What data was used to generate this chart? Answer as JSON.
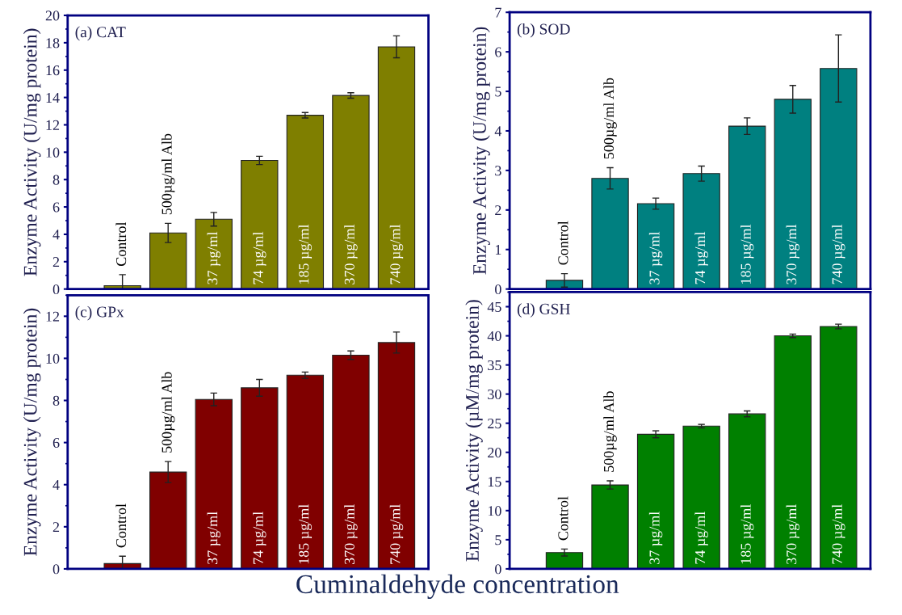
{
  "chart_data": [
    {
      "type": "bar",
      "title": "(a) CAT",
      "ylabel": "Enzyme Activity (U/mg protein)",
      "categories": [
        "Control",
        "500µg/ml Alb",
        "37 µg/ml",
        "74 µg/ml",
        "185 µg/ml",
        "370 µg/ml",
        "740 µg/ml"
      ],
      "series": [
        {
          "color": "#7f7f00",
          "values": [
            0.25,
            4.1,
            5.1,
            9.4,
            12.7,
            14.15,
            17.7
          ],
          "errors": [
            0.8,
            0.7,
            0.5,
            0.3,
            0.2,
            0.2,
            0.8
          ]
        }
      ],
      "ylim": [
        0,
        20
      ],
      "yticks": [
        0,
        2,
        4,
        6,
        8,
        10,
        12,
        14,
        16,
        18,
        20
      ],
      "grid": false,
      "legend": false
    },
    {
      "type": "bar",
      "title": "(b) SOD",
      "ylabel": "Enzyme Activity (U/mg protein)",
      "categories": [
        "Control",
        "500µg/ml Alb",
        "37 µg/ml",
        "74 µg/ml",
        "185 µg/ml",
        "370 µg/ml",
        "740 µg/ml"
      ],
      "series": [
        {
          "color": "#008080",
          "values": [
            0.22,
            2.8,
            2.16,
            2.92,
            4.12,
            4.8,
            5.58
          ],
          "errors": [
            0.17,
            0.27,
            0.14,
            0.19,
            0.21,
            0.35,
            0.85
          ]
        }
      ],
      "ylim": [
        0,
        7
      ],
      "yticks": [
        0,
        1,
        2,
        3,
        4,
        5,
        6,
        7
      ],
      "grid": false,
      "legend": false
    },
    {
      "type": "bar",
      "title": "(c) GPx",
      "ylabel": "Enzyme Activity (U/mg protein)",
      "xlabel": "Cuminaldehyde concentration",
      "categories": [
        "Control",
        "500µg/ml Alb",
        "37 µg/ml",
        "74 µg/ml",
        "185 µg/ml",
        "370 µg/ml",
        "740 µg/ml"
      ],
      "series": [
        {
          "color": "#800000",
          "values": [
            0.25,
            4.6,
            8.05,
            8.6,
            9.2,
            10.15,
            10.75
          ],
          "errors": [
            0.35,
            0.5,
            0.3,
            0.4,
            0.15,
            0.2,
            0.5
          ]
        }
      ],
      "ylim": [
        0,
        13
      ],
      "yticks": [
        0,
        2,
        4,
        6,
        8,
        10,
        12
      ],
      "grid": false,
      "legend": false
    },
    {
      "type": "bar",
      "title": "(d) GSH",
      "ylabel": "Enzyme Activity (µM/mg protein)",
      "categories": [
        "Control",
        "500µg/ml Alb",
        "37 µg/ml",
        "74 µg/ml",
        "185 µg/ml",
        "370 µg/ml",
        "740 µg/ml"
      ],
      "series": [
        {
          "color": "#008000",
          "values": [
            2.8,
            14.4,
            23.1,
            24.5,
            26.6,
            40.0,
            41.6
          ],
          "errors": [
            0.6,
            0.7,
            0.6,
            0.3,
            0.5,
            0.3,
            0.4
          ]
        }
      ],
      "ylim": [
        0,
        47.5
      ],
      "yticks": [
        0,
        5,
        10,
        15,
        20,
        25,
        30,
        35,
        40,
        45
      ],
      "grid": false,
      "legend": false
    }
  ]
}
